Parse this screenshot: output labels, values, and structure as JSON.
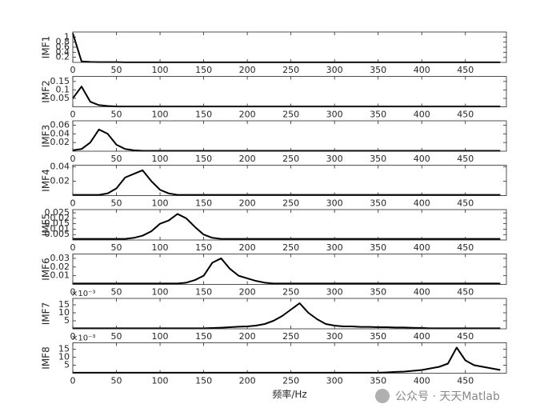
{
  "chart_data": [
    {
      "type": "line",
      "ylabel": "IMF1",
      "xlim": [
        0,
        497
      ],
      "xticks": [
        0,
        50,
        100,
        150,
        200,
        250,
        300,
        350,
        400,
        450
      ],
      "ylim": [
        0,
        1.2
      ],
      "yticks": [
        0.2,
        0.4,
        0.6,
        0.8,
        1
      ],
      "x": [
        0,
        10,
        20,
        30,
        40,
        50,
        60,
        70,
        80,
        90,
        100,
        110,
        120,
        130,
        140,
        150,
        160,
        170,
        180,
        190,
        200,
        210,
        220,
        230,
        240,
        250,
        260,
        270,
        280,
        290,
        300,
        310,
        320,
        330,
        340,
        350,
        360,
        370,
        380,
        390,
        400,
        410,
        420,
        430,
        440,
        450,
        460,
        470,
        480,
        490
      ],
      "color": "#000000",
      "values": [
        1.15,
        0.04,
        0.02,
        0.01,
        0.01,
        0.01,
        0.005,
        0.005,
        0.005,
        0.005,
        0.005,
        0.005,
        0.005,
        0.005,
        0.005,
        0.005,
        0.005,
        0.005,
        0.005,
        0.005,
        0.005,
        0.005,
        0.005,
        0.005,
        0.005,
        0.005,
        0.005,
        0.005,
        0.005,
        0.005,
        0.005,
        0.005,
        0.005,
        0.005,
        0.005,
        0.005,
        0.005,
        0.005,
        0.005,
        0.005,
        0.005,
        0.005,
        0.005,
        0.005,
        0.005,
        0.005,
        0.005,
        0.005,
        0.005,
        0.005
      ]
    },
    {
      "type": "line",
      "ylabel": "IMF2",
      "xlim": [
        0,
        497
      ],
      "xticks": [
        0,
        50,
        100,
        150,
        200,
        250,
        300,
        350,
        400,
        450
      ],
      "ylim": [
        0,
        0.18
      ],
      "yticks": [
        0.05,
        0.1,
        0.15
      ],
      "x": [
        0,
        10,
        20,
        30,
        40,
        50,
        60,
        70,
        80,
        90,
        100,
        110,
        120,
        130,
        140,
        150,
        160,
        170,
        180,
        190,
        200,
        210,
        220,
        230,
        240,
        250,
        260,
        270,
        280,
        290,
        300,
        310,
        320,
        330,
        340,
        350,
        360,
        370,
        380,
        390,
        400,
        410,
        420,
        430,
        440,
        450,
        460,
        470,
        480,
        490
      ],
      "color": "#000000",
      "values": [
        0.05,
        0.12,
        0.03,
        0.01,
        0.005,
        0.002,
        0.002,
        0.002,
        0.002,
        0.002,
        0.002,
        0.002,
        0.002,
        0.002,
        0.002,
        0.002,
        0.002,
        0.002,
        0.002,
        0.002,
        0.002,
        0.002,
        0.002,
        0.002,
        0.002,
        0.002,
        0.002,
        0.002,
        0.002,
        0.002,
        0.002,
        0.002,
        0.002,
        0.002,
        0.002,
        0.002,
        0.002,
        0.002,
        0.002,
        0.002,
        0.002,
        0.002,
        0.002,
        0.002,
        0.002,
        0.002,
        0.002,
        0.002,
        0.002,
        0.002
      ]
    },
    {
      "type": "line",
      "ylabel": "IMF3",
      "xlim": [
        0,
        497
      ],
      "xticks": [
        0,
        50,
        100,
        150,
        200,
        250,
        300,
        350,
        400,
        450
      ],
      "ylim": [
        0,
        0.07
      ],
      "yticks": [
        0.02,
        0.04,
        0.06
      ],
      "x": [
        0,
        10,
        20,
        30,
        40,
        50,
        60,
        70,
        80,
        90,
        100,
        110,
        120,
        130,
        140,
        150,
        160,
        170,
        180,
        190,
        200,
        210,
        220,
        230,
        240,
        250,
        260,
        270,
        280,
        290,
        300,
        310,
        320,
        330,
        340,
        350,
        360,
        370,
        380,
        390,
        400,
        410,
        420,
        430,
        440,
        450,
        460,
        470,
        480,
        490
      ],
      "color": "#000000",
      "values": [
        0.002,
        0.005,
        0.02,
        0.05,
        0.04,
        0.015,
        0.005,
        0.002,
        0.001,
        0.001,
        0.001,
        0.001,
        0.001,
        0.001,
        0.001,
        0.001,
        0.001,
        0.001,
        0.001,
        0.001,
        0.001,
        0.001,
        0.001,
        0.001,
        0.001,
        0.001,
        0.001,
        0.001,
        0.001,
        0.001,
        0.001,
        0.001,
        0.001,
        0.001,
        0.001,
        0.001,
        0.001,
        0.001,
        0.001,
        0.001,
        0.001,
        0.001,
        0.001,
        0.001,
        0.001,
        0.001,
        0.001,
        0.001,
        0.001,
        0.001
      ]
    },
    {
      "type": "line",
      "ylabel": "IMF4",
      "xlim": [
        0,
        497
      ],
      "xticks": [
        0,
        50,
        100,
        150,
        200,
        250,
        300,
        350,
        400,
        450
      ],
      "ylim": [
        0,
        0.042
      ],
      "yticks": [
        0.02,
        0.04
      ],
      "x": [
        0,
        10,
        20,
        30,
        40,
        50,
        60,
        70,
        80,
        90,
        100,
        110,
        120,
        130,
        140,
        150,
        160,
        170,
        180,
        190,
        200,
        210,
        220,
        230,
        240,
        250,
        260,
        270,
        280,
        290,
        300,
        310,
        320,
        330,
        340,
        350,
        360,
        370,
        380,
        390,
        400,
        410,
        420,
        430,
        440,
        450,
        460,
        470,
        480,
        490
      ],
      "color": "#000000",
      "values": [
        0.001,
        0.001,
        0.001,
        0.001,
        0.003,
        0.01,
        0.025,
        0.03,
        0.035,
        0.02,
        0.008,
        0.003,
        0.001,
        0.001,
        0.001,
        0.001,
        0.001,
        0.001,
        0.001,
        0.001,
        0.001,
        0.001,
        0.001,
        0.001,
        0.001,
        0.001,
        0.001,
        0.001,
        0.001,
        0.001,
        0.001,
        0.001,
        0.001,
        0.001,
        0.001,
        0.001,
        0.001,
        0.001,
        0.001,
        0.001,
        0.001,
        0.001,
        0.001,
        0.001,
        0.001,
        0.001,
        0.001,
        0.001,
        0.001,
        0.001
      ]
    },
    {
      "type": "line",
      "ylabel": "IMF5",
      "xlim": [
        0,
        497
      ],
      "xticks": [
        0,
        50,
        100,
        150,
        200,
        250,
        300,
        350,
        400,
        450
      ],
      "ylim": [
        0,
        0.028
      ],
      "yticks": [
        0.005,
        0.01,
        0.015,
        0.02,
        0.025
      ],
      "x": [
        0,
        10,
        20,
        30,
        40,
        50,
        60,
        70,
        80,
        90,
        100,
        110,
        120,
        130,
        140,
        150,
        160,
        170,
        180,
        190,
        200,
        210,
        220,
        230,
        240,
        250,
        260,
        270,
        280,
        290,
        300,
        310,
        320,
        330,
        340,
        350,
        360,
        370,
        380,
        390,
        400,
        410,
        420,
        430,
        440,
        450,
        460,
        470,
        480,
        490
      ],
      "color": "#000000",
      "values": [
        0.001,
        0.001,
        0.001,
        0.001,
        0.001,
        0.001,
        0.001,
        0.002,
        0.004,
        0.008,
        0.015,
        0.018,
        0.024,
        0.02,
        0.012,
        0.005,
        0.002,
        0.001,
        0.001,
        0.001,
        0.001,
        0.001,
        0.001,
        0.001,
        0.001,
        0.001,
        0.001,
        0.001,
        0.001,
        0.001,
        0.001,
        0.001,
        0.001,
        0.001,
        0.001,
        0.001,
        0.001,
        0.001,
        0.001,
        0.001,
        0.001,
        0.001,
        0.001,
        0.001,
        0.001,
        0.001,
        0.001,
        0.001,
        0.001,
        0.001
      ]
    },
    {
      "type": "line",
      "ylabel": "IMF6",
      "xlim": [
        0,
        497
      ],
      "xticks": [
        0,
        50,
        100,
        150,
        200,
        250,
        300,
        350,
        400,
        450
      ],
      "ylim": [
        0,
        0.035
      ],
      "yticks": [
        0.01,
        0.02,
        0.03
      ],
      "x": [
        0,
        10,
        20,
        30,
        40,
        50,
        60,
        70,
        80,
        90,
        100,
        110,
        120,
        130,
        140,
        150,
        160,
        170,
        180,
        190,
        200,
        210,
        220,
        230,
        240,
        250,
        260,
        270,
        280,
        290,
        300,
        310,
        320,
        330,
        340,
        350,
        360,
        370,
        380,
        390,
        400,
        410,
        420,
        430,
        440,
        450,
        460,
        470,
        480,
        490
      ],
      "color": "#000000",
      "values": [
        0.001,
        0.001,
        0.001,
        0.001,
        0.001,
        0.001,
        0.001,
        0.001,
        0.001,
        0.001,
        0.001,
        0.001,
        0.001,
        0.002,
        0.005,
        0.01,
        0.025,
        0.03,
        0.018,
        0.01,
        0.007,
        0.004,
        0.002,
        0.001,
        0.001,
        0.001,
        0.001,
        0.001,
        0.001,
        0.001,
        0.001,
        0.001,
        0.001,
        0.001,
        0.001,
        0.001,
        0.001,
        0.001,
        0.001,
        0.001,
        0.001,
        0.001,
        0.001,
        0.001,
        0.001,
        0.001,
        0.001,
        0.001,
        0.001,
        0.001
      ]
    },
    {
      "type": "line",
      "ylabel": "IMF7",
      "y_exponent": "×10⁻³",
      "xlim": [
        0,
        497
      ],
      "xticks": [
        0,
        50,
        100,
        150,
        200,
        250,
        300,
        350,
        400,
        450
      ],
      "ylim": [
        0,
        0.019
      ],
      "yticks": [
        {
          "value": 0.005,
          "label": "5"
        },
        {
          "value": 0.01,
          "label": "10"
        },
        {
          "value": 0.015,
          "label": "15"
        }
      ],
      "x": [
        0,
        10,
        20,
        30,
        40,
        50,
        60,
        70,
        80,
        90,
        100,
        110,
        120,
        130,
        140,
        150,
        160,
        170,
        180,
        190,
        200,
        210,
        220,
        230,
        240,
        250,
        260,
        270,
        280,
        290,
        300,
        310,
        320,
        330,
        340,
        350,
        360,
        370,
        380,
        390,
        400,
        410,
        420,
        430,
        440,
        450,
        460,
        470,
        480,
        490
      ],
      "color": "#000000",
      "values": [
        0.0003,
        0.0003,
        0.0003,
        0.0003,
        0.0003,
        0.0003,
        0.0003,
        0.0003,
        0.0003,
        0.0003,
        0.0003,
        0.0003,
        0.0003,
        0.0003,
        0.0003,
        0.0003,
        0.0005,
        0.0007,
        0.001,
        0.0013,
        0.0015,
        0.002,
        0.003,
        0.005,
        0.008,
        0.012,
        0.016,
        0.01,
        0.006,
        0.003,
        0.002,
        0.0015,
        0.0015,
        0.0012,
        0.0012,
        0.001,
        0.001,
        0.0008,
        0.0008,
        0.0006,
        0.0005,
        0.0003,
        0.0003,
        0.0003,
        0.0003,
        0.0003,
        0.0003,
        0.0003,
        0.0003,
        0.0003
      ]
    },
    {
      "type": "line",
      "ylabel": "IMF8",
      "y_exponent": "×10⁻³",
      "xlabel": "频率/Hz",
      "xlim": [
        0,
        497
      ],
      "xticks": [
        0,
        50,
        100,
        150,
        200,
        250,
        300,
        350,
        400,
        450
      ],
      "ylim": [
        0,
        0.019
      ],
      "yticks": [
        {
          "value": 0.005,
          "label": "5"
        },
        {
          "value": 0.01,
          "label": "10"
        },
        {
          "value": 0.015,
          "label": "15"
        }
      ],
      "x": [
        0,
        10,
        20,
        30,
        40,
        50,
        60,
        70,
        80,
        90,
        100,
        110,
        120,
        130,
        140,
        150,
        160,
        170,
        180,
        190,
        200,
        210,
        220,
        230,
        240,
        250,
        260,
        270,
        280,
        290,
        300,
        310,
        320,
        330,
        340,
        350,
        360,
        370,
        380,
        390,
        400,
        410,
        420,
        430,
        440,
        450,
        460,
        470,
        480,
        490
      ],
      "color": "#000000",
      "values": [
        0.0003,
        0.0003,
        0.0003,
        0.0003,
        0.0003,
        0.0003,
        0.0003,
        0.0003,
        0.0003,
        0.0003,
        0.0003,
        0.0003,
        0.0003,
        0.0003,
        0.0003,
        0.0003,
        0.0003,
        0.0003,
        0.0003,
        0.0003,
        0.0003,
        0.0003,
        0.0003,
        0.0003,
        0.0003,
        0.0003,
        0.0003,
        0.0003,
        0.0003,
        0.0003,
        0.0003,
        0.0003,
        0.0003,
        0.0003,
        0.0003,
        0.0003,
        0.0005,
        0.0008,
        0.001,
        0.0015,
        0.002,
        0.003,
        0.004,
        0.006,
        0.016,
        0.008,
        0.005,
        0.004,
        0.003,
        0.002
      ]
    }
  ],
  "watermark": "公众号 · 天天Matlab"
}
